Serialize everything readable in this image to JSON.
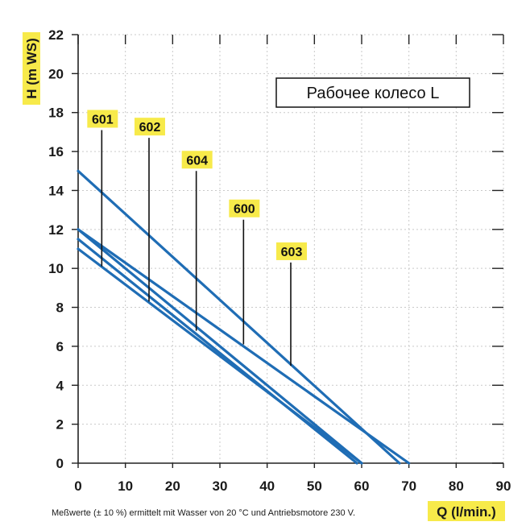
{
  "chart_data": {
    "type": "line",
    "x": {
      "label": "Q (l/min.)",
      "lim": [
        0,
        90
      ],
      "ticks": [
        0,
        10,
        20,
        30,
        40,
        50,
        60,
        70,
        80,
        90
      ]
    },
    "y": {
      "label": "H (m WS)",
      "lim": [
        0,
        22
      ],
      "ticks": [
        0,
        2,
        4,
        6,
        8,
        10,
        12,
        14,
        16,
        18,
        20,
        22
      ]
    },
    "grid": true,
    "title": "Рабочее колесо L",
    "footnote": "Meßwerte (± 10 %) ermittelt mit Wasser von 20 °C und Antriebsmotore 230 V.",
    "series": [
      {
        "name": "601",
        "x": [
          0,
          59
        ],
        "y": [
          11.5,
          0
        ]
      },
      {
        "name": "602",
        "x": [
          0,
          60
        ],
        "y": [
          12.0,
          0
        ]
      },
      {
        "name": "604",
        "x": [
          0,
          60
        ],
        "y": [
          11.0,
          0
        ]
      },
      {
        "name": "600",
        "x": [
          0,
          68
        ],
        "y": [
          15.0,
          0
        ]
      },
      {
        "name": "603",
        "x": [
          0,
          70
        ],
        "y": [
          12.0,
          0
        ]
      }
    ],
    "labels": [
      {
        "text": "601",
        "leader_x": 5,
        "leader_y_top": 17.1,
        "leader_y_bottom": 10.1
      },
      {
        "text": "602",
        "leader_x": 15,
        "leader_y_top": 16.7,
        "leader_y_bottom": 8.3
      },
      {
        "text": "604",
        "leader_x": 25,
        "leader_y_top": 15.0,
        "leader_y_bottom": 6.8
      },
      {
        "text": "600",
        "leader_x": 35,
        "leader_y_top": 12.5,
        "leader_y_bottom": 6.1
      },
      {
        "text": "603",
        "leader_x": 45,
        "leader_y_top": 10.3,
        "leader_y_bottom": 5.0
      }
    ]
  },
  "colors": {
    "line": "#1f6db5",
    "tag": "#f7ea4a",
    "grid": "#c9c9c9",
    "axis": "#222222"
  }
}
